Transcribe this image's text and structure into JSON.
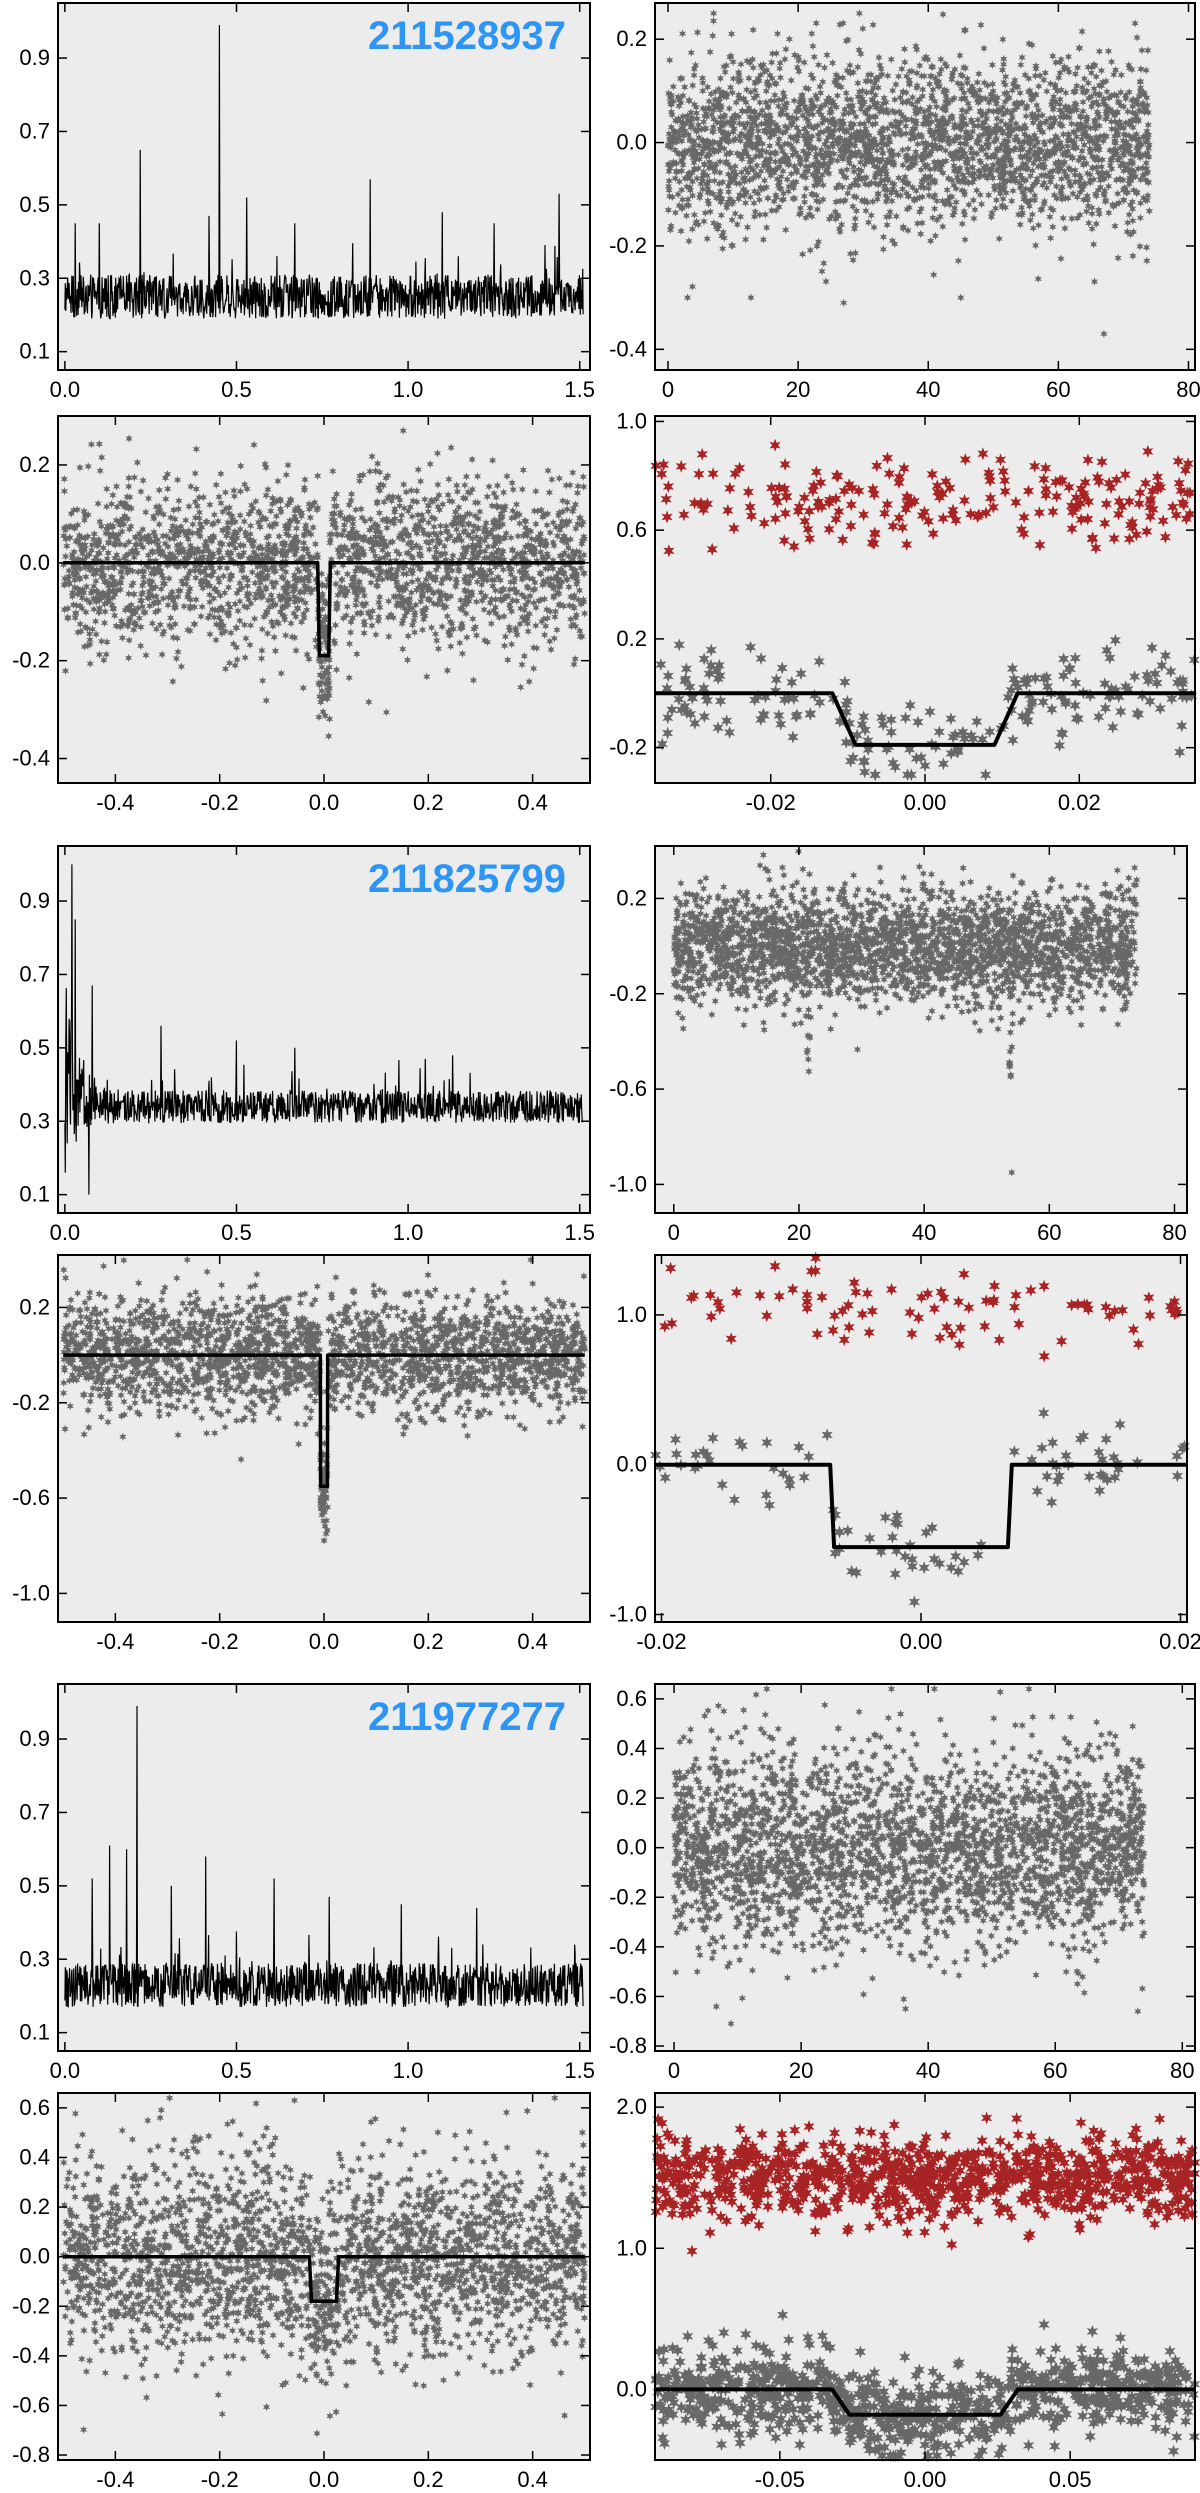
{
  "colors": {
    "panel_bg": "#ececec",
    "frame": "#000000",
    "points": "#686868",
    "odd_even": "#a82424",
    "model": "#000000",
    "star_label": "#2f95f5"
  },
  "targets": [
    {
      "id": "211528937",
      "periodogram": {
        "type": "line",
        "xlim": [
          -0.02,
          1.53
        ],
        "ylim": [
          0.05,
          1.05
        ],
        "xticks": [
          0.0,
          0.5,
          1.0,
          1.5
        ],
        "xtick_labels": [
          "0.0",
          "0.5",
          "1.0",
          "1.5"
        ],
        "yticks": [
          0.1,
          0.3,
          0.5,
          0.7,
          0.9
        ],
        "ytick_labels": [
          "0.1",
          "0.3",
          "0.5",
          "0.7",
          "0.9"
        ],
        "baseline": 0.25,
        "spread": 0.06,
        "tail_amplitude": 0,
        "tail_decay": 0.05,
        "peaks": [
          [
            0.03,
            0.45
          ],
          [
            0.22,
            0.65
          ],
          [
            0.45,
            0.99
          ],
          [
            0.53,
            0.52
          ],
          [
            0.89,
            0.57
          ],
          [
            0.1,
            0.45
          ],
          [
            0.42,
            0.47
          ],
          [
            1.1,
            0.48
          ],
          [
            1.44,
            0.53
          ],
          [
            1.25,
            0.45
          ],
          [
            0.67,
            0.45
          ]
        ]
      },
      "lightcurve": {
        "type": "scatter",
        "xlim": [
          -2,
          81
        ],
        "ylim": [
          -0.44,
          0.27
        ],
        "xticks": [
          0,
          20,
          40,
          60,
          80
        ],
        "xtick_labels": [
          "0",
          "20",
          "40",
          "60",
          "80"
        ],
        "yticks": [
          -0.4,
          -0.2,
          0.0,
          0.2
        ],
        "ytick_labels": [
          "-0.4",
          "-0.2",
          "0.0",
          "0.2"
        ],
        "t_span": [
          0,
          74
        ],
        "n_points": 2600,
        "scatter_sd": 0.085,
        "period": null,
        "depth": 0,
        "dip_times": [],
        "outliers": [
          [
            67,
            -0.37
          ],
          [
            45,
            -0.3
          ],
          [
            3,
            -0.3
          ],
          [
            27,
            -0.31
          ]
        ]
      },
      "folded": {
        "type": "scatter",
        "xlim": [
          -0.51,
          0.51
        ],
        "ylim": [
          -0.45,
          0.3
        ],
        "xticks": [
          -0.4,
          -0.2,
          0.0,
          0.2,
          0.4
        ],
        "xtick_labels": [
          "-0.4",
          "-0.2",
          "0.0",
          "0.2",
          "0.4"
        ],
        "yticks": [
          -0.4,
          -0.2,
          0.0,
          0.2
        ],
        "ytick_labels": [
          "-0.4",
          "-0.2",
          "0.0",
          "0.2"
        ],
        "n_points": 2300,
        "scatter_sd": 0.085,
        "depth": -0.19,
        "half_width": 0.012,
        "ingress": 0.003
      },
      "zoom": {
        "type": "scatter",
        "xlim": [
          -0.035,
          0.035
        ],
        "ylim": [
          -0.33,
          1.02
        ],
        "xticks": [
          -0.02,
          0.0,
          0.02
        ],
        "xtick_labels": [
          "-0.02",
          "0.00",
          "0.02"
        ],
        "yticks": [
          -0.2,
          0.2,
          0.6,
          1.0
        ],
        "ytick_labels": [
          "-0.2",
          "0.2",
          "0.6",
          "1.0"
        ],
        "n_points": 210,
        "scatter_sd": 0.08,
        "depth": -0.19,
        "half_width": 0.012,
        "ingress": 0.003,
        "offset": 0.7,
        "n_offset": 210
      }
    },
    {
      "id": "211825799",
      "periodogram": {
        "type": "line",
        "xlim": [
          -0.02,
          1.53
        ],
        "ylim": [
          0.05,
          1.05
        ],
        "xticks": [
          0.0,
          0.5,
          1.0,
          1.5
        ],
        "xtick_labels": [
          "0.0",
          "0.5",
          "1.0",
          "1.5"
        ],
        "yticks": [
          0.1,
          0.3,
          0.5,
          0.7,
          0.9
        ],
        "ytick_labels": [
          "0.1",
          "0.3",
          "0.5",
          "0.7",
          "0.9"
        ],
        "baseline": 0.34,
        "spread": 0.045,
        "tail_amplitude": 0.5,
        "tail_decay": 0.05,
        "peaks": [
          [
            0.02,
            1.0
          ],
          [
            0.03,
            0.85
          ],
          [
            0.07,
            0.1
          ],
          [
            0.08,
            0.67
          ],
          [
            0.28,
            0.56
          ],
          [
            0.5,
            0.52
          ],
          [
            0.67,
            0.5
          ],
          [
            1.13,
            0.48
          ],
          [
            1.05,
            0.47
          ]
        ]
      },
      "lightcurve": {
        "type": "scatter",
        "xlim": [
          -3,
          82
        ],
        "ylim": [
          -1.12,
          0.42
        ],
        "xticks": [
          0,
          20,
          40,
          60,
          80
        ],
        "xtick_labels": [
          "0",
          "20",
          "40",
          "60",
          "80"
        ],
        "yticks": [
          -1.0,
          -0.6,
          -0.2,
          0.2
        ],
        "ytick_labels": [
          "-1.0",
          "-0.6",
          "-0.2",
          "0.2"
        ],
        "t_span": [
          0,
          74
        ],
        "n_points": 2600,
        "scatter_sd": 0.12,
        "period": null,
        "depth": -0.55,
        "dip_times": [
          21.5,
          53.8
        ],
        "outliers": [
          [
            54,
            -0.95
          ]
        ]
      },
      "folded": {
        "type": "scatter",
        "xlim": [
          -0.51,
          0.51
        ],
        "ylim": [
          -1.12,
          0.42
        ],
        "xticks": [
          -0.4,
          -0.2,
          0.0,
          0.2,
          0.4
        ],
        "xtick_labels": [
          "-0.4",
          "-0.2",
          "0.0",
          "0.2",
          "0.4"
        ],
        "yticks": [
          -1.0,
          -0.6,
          -0.2,
          0.2
        ],
        "ytick_labels": [
          "-1.0",
          "-0.6",
          "-0.2",
          "0.2"
        ],
        "n_points": 2300,
        "scatter_sd": 0.12,
        "depth": -0.55,
        "half_width": 0.007,
        "ingress": 0.0005
      },
      "zoom": {
        "type": "scatter",
        "xlim": [
          -0.0205,
          0.0205
        ],
        "ylim": [
          -1.05,
          1.4
        ],
        "xticks": [
          -0.02,
          0.0,
          0.02
        ],
        "xtick_labels": [
          "-0.02",
          "0.00",
          "0.02"
        ],
        "yticks": [
          -1.0,
          0.0,
          1.0
        ],
        "ytick_labels": [
          "-1.0",
          "0.0",
          "1.0"
        ],
        "n_points": 95,
        "scatter_sd": 0.12,
        "depth": -0.55,
        "half_width": 0.007,
        "ingress": 0.0003,
        "offset": 1.05,
        "n_offset": 85
      }
    },
    {
      "id": "211977277",
      "periodogram": {
        "type": "line",
        "xlim": [
          -0.02,
          1.53
        ],
        "ylim": [
          0.05,
          1.05
        ],
        "xticks": [
          0.0,
          0.5,
          1.0,
          1.5
        ],
        "xtick_labels": [
          "0.0",
          "0.5",
          "1.0",
          "1.5"
        ],
        "yticks": [
          0.1,
          0.3,
          0.5,
          0.7,
          0.9
        ],
        "ytick_labels": [
          "0.1",
          "0.3",
          "0.5",
          "0.7",
          "0.9"
        ],
        "baseline": 0.23,
        "spread": 0.06,
        "tail_amplitude": 0,
        "tail_decay": 0.05,
        "peaks": [
          [
            0.21,
            0.99
          ],
          [
            0.13,
            0.61
          ],
          [
            0.18,
            0.6
          ],
          [
            0.41,
            0.58
          ],
          [
            0.08,
            0.52
          ],
          [
            0.61,
            0.52
          ],
          [
            0.31,
            0.5
          ],
          [
            0.77,
            0.47
          ],
          [
            0.98,
            0.45
          ],
          [
            1.2,
            0.44
          ]
        ]
      },
      "lightcurve": {
        "type": "scatter",
        "xlim": [
          -3,
          82
        ],
        "ylim": [
          -0.82,
          0.66
        ],
        "xticks": [
          0,
          20,
          40,
          60,
          80
        ],
        "xtick_labels": [
          "0",
          "20",
          "40",
          "60",
          "80"
        ],
        "yticks": [
          -0.8,
          -0.6,
          -0.4,
          -0.2,
          0.0,
          0.2,
          0.4,
          0.6
        ],
        "ytick_labels": [
          "-0.8",
          "-0.6",
          "-0.4",
          "-0.2",
          "0.0",
          "0.2",
          "0.4",
          "0.6"
        ],
        "t_span": [
          0,
          74
        ],
        "n_points": 2800,
        "scatter_sd": 0.2,
        "period": null,
        "depth": 0,
        "dip_times": [],
        "outliers": [
          [
            73,
            -0.66
          ]
        ]
      },
      "folded": {
        "type": "scatter",
        "xlim": [
          -0.51,
          0.51
        ],
        "ylim": [
          -0.82,
          0.66
        ],
        "xticks": [
          -0.4,
          -0.2,
          0.0,
          0.2,
          0.4
        ],
        "xtick_labels": [
          "-0.4",
          "-0.2",
          "0.0",
          "0.2",
          "0.4"
        ],
        "yticks": [
          -0.8,
          -0.6,
          -0.4,
          -0.2,
          0.0,
          0.2,
          0.4,
          0.6
        ],
        "ytick_labels": [
          "-0.8",
          "-0.6",
          "-0.4",
          "-0.2",
          "0.0",
          "0.2",
          "0.4",
          "0.6"
        ],
        "n_points": 2500,
        "scatter_sd": 0.2,
        "depth": -0.18,
        "half_width": 0.028,
        "ingress": 0.004
      },
      "zoom": {
        "type": "scatter",
        "xlim": [
          -0.093,
          0.093
        ],
        "ylim": [
          -0.5,
          2.1
        ],
        "xticks": [
          -0.05,
          0.0,
          0.05
        ],
        "xtick_labels": [
          "-0.05",
          "0.00",
          "0.05"
        ],
        "yticks": [
          0.0,
          1.0,
          2.0
        ],
        "ytick_labels": [
          "0.0",
          "1.0",
          "2.0"
        ],
        "n_points": 900,
        "scatter_sd": 0.15,
        "depth": -0.18,
        "half_width": 0.032,
        "ingress": 0.006,
        "offset": 1.5,
        "n_offset": 900
      }
    }
  ]
}
